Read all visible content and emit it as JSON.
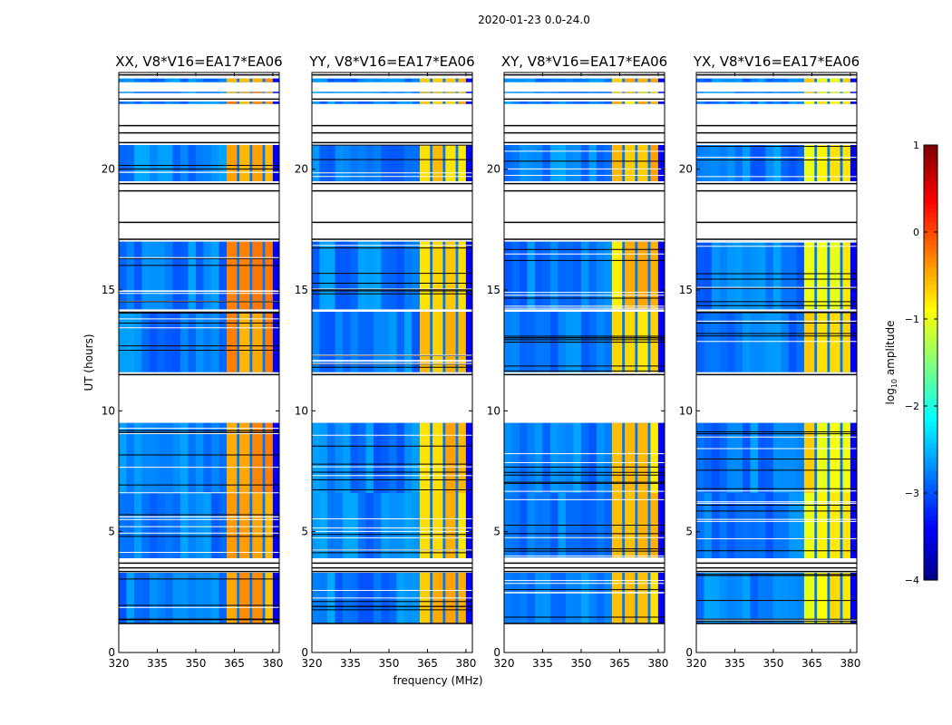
{
  "chart_data": {
    "type": "heatmap",
    "suptitle": "2020-01-23 0.0-24.0",
    "xlabel": "frequency (MHz)",
    "ylabel": "UT (hours)",
    "xlim": [
      320,
      382.5
    ],
    "ylim": [
      0,
      24
    ],
    "xticks": [
      320,
      335,
      350,
      365,
      380
    ],
    "yticks": [
      0,
      5,
      10,
      15,
      20
    ],
    "panels": [
      {
        "title": "XX, V8*V16=EA17*EA06",
        "band_level": -0.4
      },
      {
        "title": "YY, V8*V16=EA17*EA06",
        "band_level": -0.6
      },
      {
        "title": "XY, V8*V16=EA17*EA06",
        "band_level": -0.6
      },
      {
        "title": "YX, V8*V16=EA17*EA06",
        "band_level": -0.8
      }
    ],
    "time_blocks": [
      {
        "start": 1.2,
        "end": 3.3
      },
      {
        "start": 3.9,
        "end": 6.6
      },
      {
        "start": 6.6,
        "end": 9.5
      },
      {
        "start": 11.6,
        "end": 14.1
      },
      {
        "start": 14.2,
        "end": 17.0
      },
      {
        "start": 19.5,
        "end": 21.0
      },
      {
        "start": 22.7,
        "end": 22.8
      },
      {
        "start": 23.15,
        "end": 23.2
      },
      {
        "start": 23.6,
        "end": 23.75
      }
    ],
    "background_level": -2.8,
    "strong_channels": [
      [
        362,
        366
      ],
      [
        367,
        371
      ],
      [
        372,
        376
      ],
      [
        377,
        380
      ]
    ],
    "colorbar": {
      "label": "log10 amplitude",
      "label_main": "log",
      "label_sub": "10",
      "label_rest": " amplitude",
      "range": [
        -4,
        1
      ],
      "ticks": [
        "1",
        "0",
        "−1",
        "−2",
        "−3",
        "−4"
      ]
    }
  }
}
